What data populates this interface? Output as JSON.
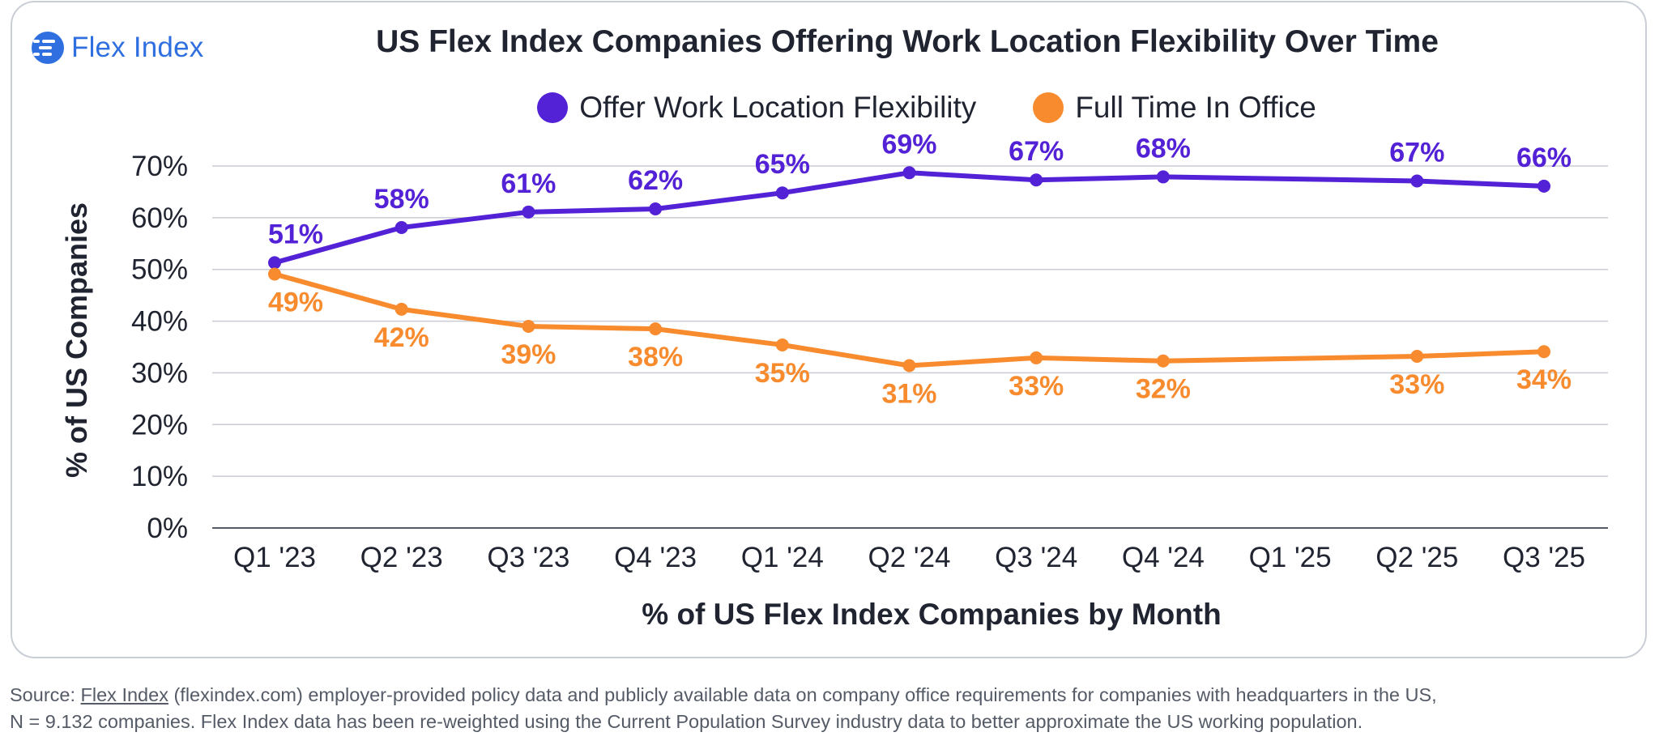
{
  "brand": {
    "name": "Flex Index",
    "logo_icon": "flex-index-logo-icon",
    "color": "#2f6fe0"
  },
  "chart_data": {
    "type": "line",
    "title": "US Flex Index Companies Offering Work Location Flexibility Over Time",
    "xlabel": "% of US Flex Index Companies by Month",
    "ylabel": "% of US Companies",
    "categories": [
      "Q1 '23",
      "Q2 '23",
      "Q3 '23",
      "Q4 '23",
      "Q1 '24",
      "Q2 '24",
      "Q3 '24",
      "Q4 '24",
      "Q1 '25",
      "Q2 '25",
      "Q3 '25"
    ],
    "ylim": [
      0,
      70
    ],
    "yticks": [
      0,
      10,
      20,
      30,
      40,
      50,
      60,
      70
    ],
    "ytick_labels": [
      "0%",
      "10%",
      "20%",
      "30%",
      "40%",
      "50%",
      "60%",
      "70%"
    ],
    "grid": true,
    "legend_position": "top-center",
    "series": [
      {
        "name": "Offer Work Location Flexibility",
        "color": "#5321d6",
        "label_position": "above",
        "x": [
          0,
          1,
          2,
          3,
          4,
          5,
          6,
          7,
          9,
          10
        ],
        "values": [
          51.3,
          58.1,
          61.1,
          61.7,
          64.8,
          68.7,
          67.3,
          67.9,
          67.1,
          66.1
        ],
        "labels": [
          "51%",
          "58%",
          "61%",
          "62%",
          "65%",
          "69%",
          "67%",
          "68%",
          "67%",
          "66%"
        ]
      },
      {
        "name": "Full Time In Office",
        "color": "#f98b2f",
        "label_position": "below",
        "x": [
          0,
          1,
          2,
          3,
          4,
          5,
          6,
          7,
          9,
          10
        ],
        "values": [
          49.1,
          42.3,
          39.0,
          38.5,
          35.4,
          31.4,
          32.9,
          32.3,
          33.2,
          34.1
        ],
        "labels": [
          "49%",
          "42%",
          "39%",
          "38%",
          "35%",
          "31%",
          "33%",
          "32%",
          "33%",
          "34%"
        ]
      }
    ]
  },
  "footer": {
    "source_prefix": "Source: ",
    "source_link": "Flex Index",
    "source_rest": " (flexindex.com) employer-provided policy data and publicly available data on company office requirements for companies with headquarters in the US,",
    "line2": "N = 9.132 companies. Flex Index data has been re-weighted using the Current Population Survey industry data to better approximate the US working population."
  }
}
